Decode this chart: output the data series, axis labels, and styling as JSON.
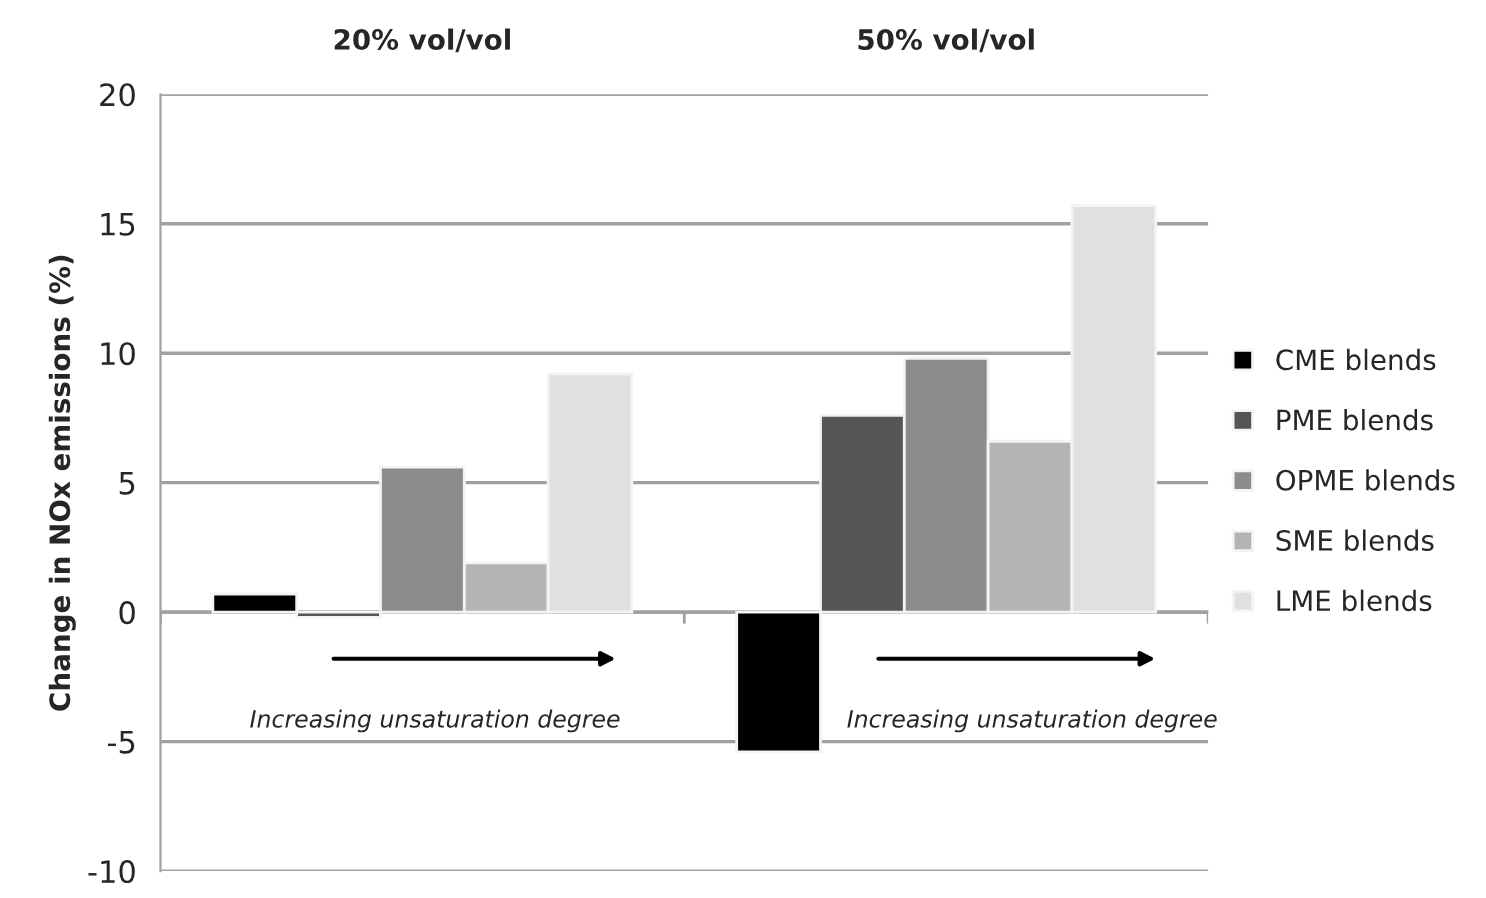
{
  "chart_data": {
    "type": "bar",
    "categories": [
      "20% vol/vol",
      "50% vol/vol"
    ],
    "ylabel": "Change in NOx emissions (%)",
    "series": [
      {
        "name": "CME blends",
        "color": "#000000",
        "values": [
          0.7,
          -5.4
        ]
      },
      {
        "name": "PME blends",
        "color": "#555555",
        "values": [
          -0.2,
          7.6
        ]
      },
      {
        "name": "OPME blends",
        "color": "#8c8c8c",
        "values": [
          5.6,
          9.8
        ]
      },
      {
        "name": "SME blends",
        "color": "#b4b4b4",
        "values": [
          1.9,
          6.6
        ]
      },
      {
        "name": "LME blends",
        "color": "#e0e0e0",
        "values": [
          9.2,
          15.7
        ]
      }
    ],
    "annotations": [
      "Increasing unsaturation degree",
      "Increasing unsaturation degree"
    ],
    "ylim": [
      -10,
      20
    ],
    "yticks": [
      -10,
      -5,
      0,
      5,
      10,
      15,
      20
    ],
    "grid": "y",
    "legend": "right"
  }
}
